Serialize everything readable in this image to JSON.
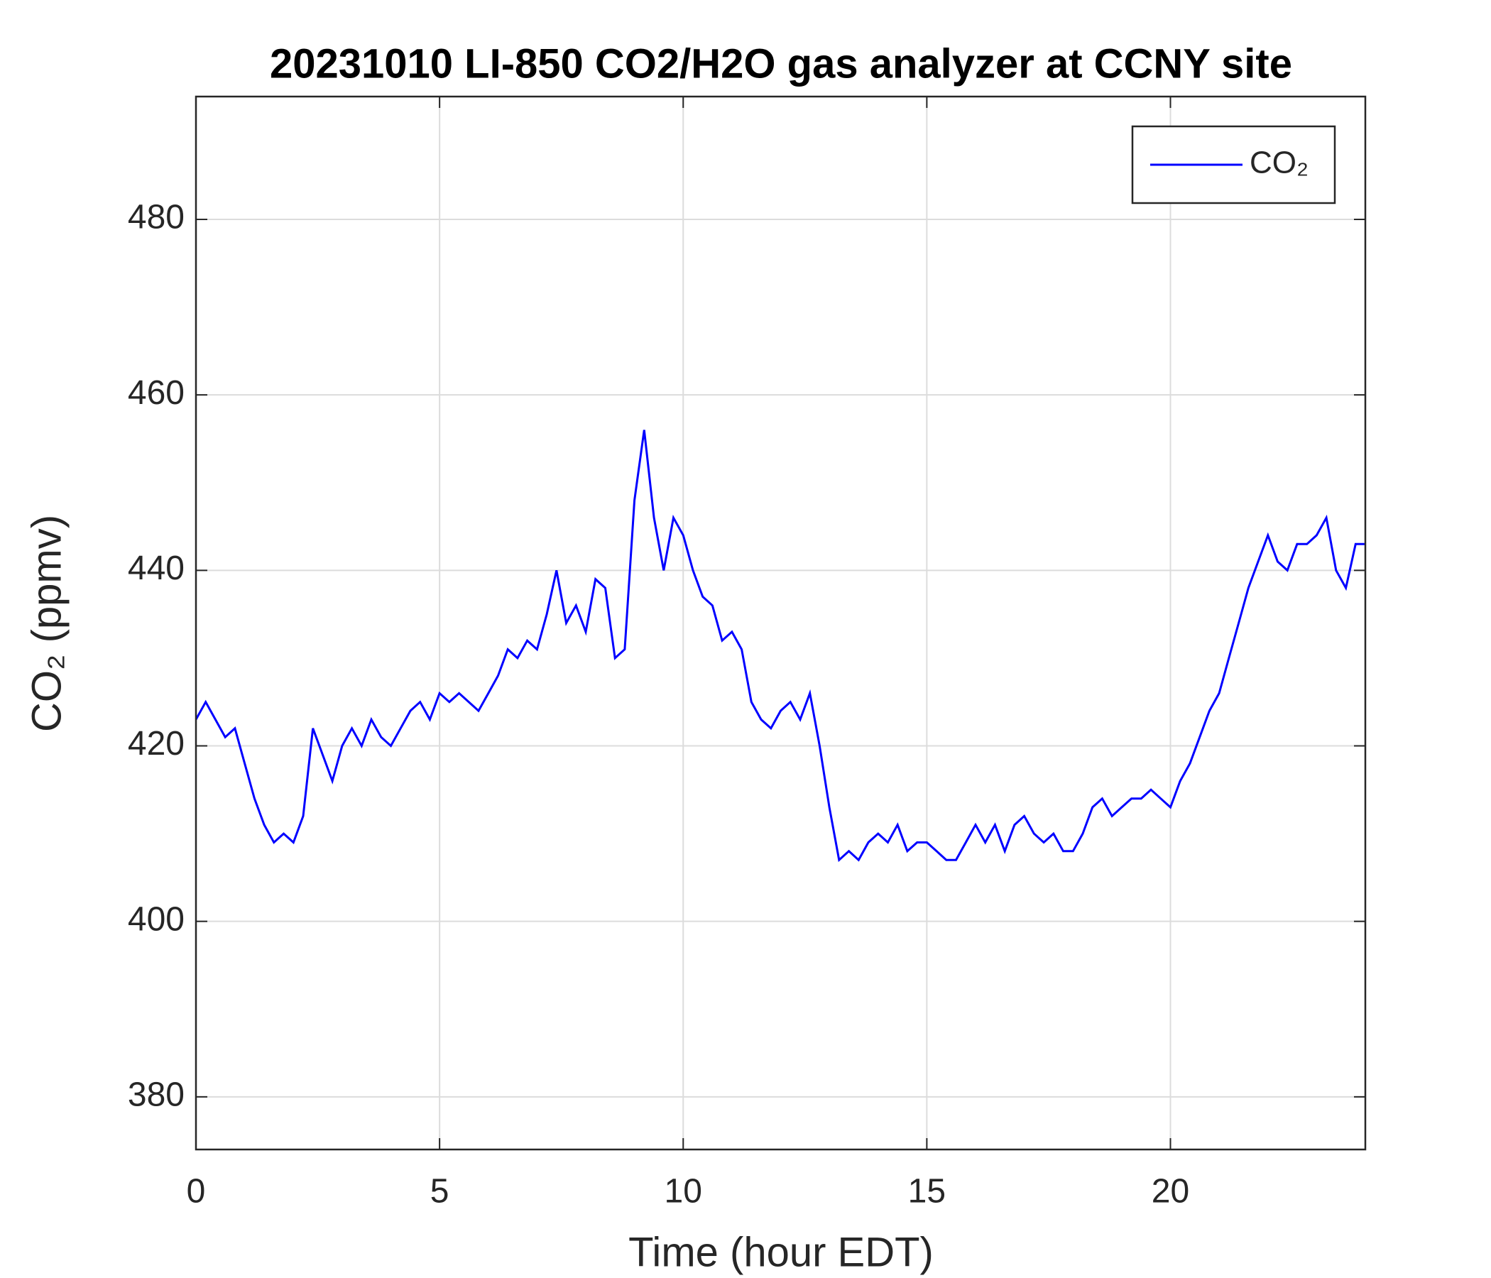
{
  "chart_data": {
    "type": "line",
    "title": "20231010 LI-850 CO2/H2O gas analyzer at CCNY site",
    "xlabel": "Time (hour EDT)",
    "ylabel": "CO₂ (ppmv)",
    "xlim": [
      0,
      24
    ],
    "xticks": [
      0,
      5,
      10,
      15,
      20
    ],
    "ylim": [
      374,
      494
    ],
    "yticks": [
      380,
      400,
      420,
      440,
      460,
      480
    ],
    "grid": true,
    "legend": "top-right",
    "x": [
      0,
      0.2,
      0.4,
      0.6,
      0.8,
      1,
      1.2,
      1.4,
      1.6,
      1.8,
      2,
      2.2,
      2.4,
      2.6,
      2.8,
      3,
      3.2,
      3.4,
      3.6,
      3.8,
      4,
      4.2,
      4.4,
      4.6,
      4.8,
      5,
      5.2,
      5.4,
      5.6,
      5.8,
      6,
      6.2,
      6.4,
      6.6,
      6.8,
      7,
      7.2,
      7.4,
      7.6,
      7.8,
      8,
      8.2,
      8.4,
      8.6,
      8.8,
      9,
      9.2,
      9.4,
      9.6,
      9.8,
      10,
      10.2,
      10.4,
      10.6,
      10.8,
      11,
      11.2,
      11.4,
      11.6,
      11.8,
      12,
      12.2,
      12.4,
      12.6,
      12.8,
      13,
      13.2,
      13.4,
      13.6,
      13.8,
      14,
      14.2,
      14.4,
      14.6,
      14.8,
      15,
      15.2,
      15.4,
      15.6,
      15.8,
      16,
      16.2,
      16.4,
      16.6,
      16.8,
      17,
      17.2,
      17.4,
      17.6,
      17.8,
      18,
      18.2,
      18.4,
      18.6,
      18.8,
      19,
      19.2,
      19.4,
      19.6,
      19.8,
      20,
      20.2,
      20.4,
      20.6,
      20.8,
      21,
      21.2,
      21.4,
      21.6,
      21.8,
      22,
      22.2,
      22.4,
      22.6,
      22.8,
      23,
      23.2,
      23.4,
      23.6,
      23.8,
      24
    ],
    "series": [
      {
        "name": "CO₂",
        "color": "#0000ff",
        "values": [
          423,
          425,
          423,
          421,
          422,
          418,
          414,
          411,
          409,
          410,
          409,
          412,
          422,
          419,
          416,
          420,
          422,
          420,
          423,
          421,
          420,
          422,
          424,
          425,
          423,
          426,
          425,
          426,
          425,
          424,
          426,
          428,
          431,
          430,
          432,
          431,
          435,
          440,
          434,
          436,
          433,
          439,
          438,
          430,
          431,
          448,
          456,
          446,
          440,
          446,
          444,
          440,
          437,
          436,
          432,
          433,
          431,
          425,
          423,
          422,
          424,
          425,
          423,
          426,
          420,
          413,
          407,
          408,
          407,
          409,
          410,
          409,
          411,
          408,
          409,
          409,
          408,
          407,
          407,
          409,
          411,
          409,
          411,
          408,
          411,
          412,
          410,
          409,
          410,
          408,
          408,
          410,
          413,
          414,
          412,
          413,
          414,
          414,
          415,
          414,
          413,
          416,
          418,
          421,
          424,
          426,
          430,
          434,
          438,
          441,
          444,
          441,
          440,
          443,
          443,
          444,
          446,
          440,
          438,
          443,
          443
        ]
      }
    ]
  }
}
